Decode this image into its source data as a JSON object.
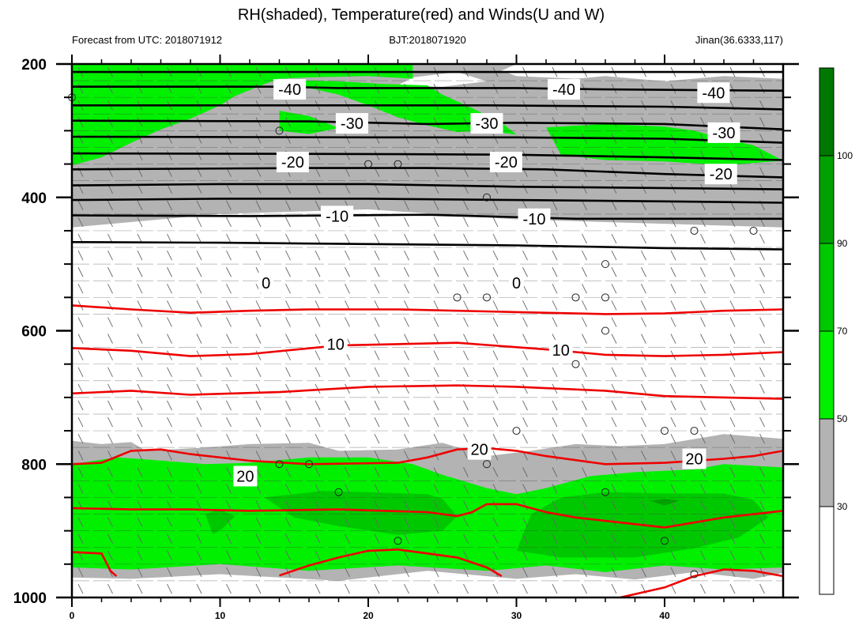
{
  "chart_data": {
    "type": "contour",
    "title": "RH(shaded), Temperature(red) and Winds(U and W)",
    "subtitle_left": "Forecast from UTC: 2018071912",
    "subtitle_center": "BJT:2018071920",
    "subtitle_right": "Jinan(36.6333,117)",
    "x": {
      "ticks": [
        0,
        10,
        20,
        30,
        40
      ],
      "range": [
        0,
        48
      ]
    },
    "y": {
      "ticks": [
        200,
        400,
        600,
        800,
        1000
      ],
      "range": [
        200,
        1000
      ],
      "inverted": true
    },
    "colorbar": {
      "levels": [
        30,
        50,
        70,
        90,
        100
      ],
      "colors": [
        "#ffffff",
        "#b3b3b3",
        "#00f000",
        "#00c800",
        "#00a000",
        "#007800"
      ]
    },
    "contour_labels": [
      {
        "text": "-40",
        "x": 14.7,
        "y": 238
      },
      {
        "text": "-40",
        "x": 33.2,
        "y": 238
      },
      {
        "text": "-40",
        "x": 43.3,
        "y": 243
      },
      {
        "text": "-30",
        "x": 18.9,
        "y": 289
      },
      {
        "text": "-30",
        "x": 28.0,
        "y": 289
      },
      {
        "text": "-30",
        "x": 44.0,
        "y": 303
      },
      {
        "text": "-20",
        "x": 14.9,
        "y": 347
      },
      {
        "text": "-20",
        "x": 29.3,
        "y": 347
      },
      {
        "text": "-20",
        "x": 43.8,
        "y": 365
      },
      {
        "text": "-10",
        "x": 17.9,
        "y": 428
      },
      {
        "text": "-10",
        "x": 31.2,
        "y": 432
      },
      {
        "text": "0",
        "x": 13.1,
        "y": 528
      },
      {
        "text": "0",
        "x": 30.0,
        "y": 528
      },
      {
        "text": "10",
        "x": 17.8,
        "y": 620
      },
      {
        "text": "10",
        "x": 33.0,
        "y": 629
      },
      {
        "text": "20",
        "x": 11.7,
        "y": 818
      },
      {
        "text": "20",
        "x": 27.5,
        "y": 778
      },
      {
        "text": "20",
        "x": 42.0,
        "y": 792
      }
    ]
  }
}
